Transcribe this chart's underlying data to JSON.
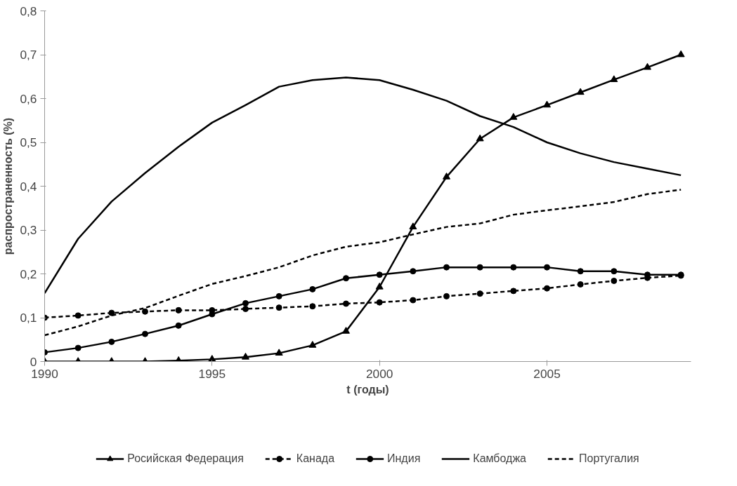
{
  "chart_data": {
    "type": "line",
    "xlabel": "t (годы)",
    "ylabel": "распространенность (%)",
    "x": [
      1990,
      1991,
      1992,
      1993,
      1994,
      1995,
      1996,
      1997,
      1998,
      1999,
      2000,
      2001,
      2002,
      2003,
      2004,
      2005,
      2006,
      2007,
      2008,
      2009
    ],
    "xlim": [
      1990,
      2009.3
    ],
    "xticks": [
      1990,
      1995,
      2000,
      2005
    ],
    "ylim": [
      0,
      0.8
    ],
    "yticks": [
      {
        "value": 0,
        "label": "0"
      },
      {
        "value": 0.1,
        "label": "0,1"
      },
      {
        "value": 0.2,
        "label": "0,2"
      },
      {
        "value": 0.3,
        "label": "0,3"
      },
      {
        "value": 0.4,
        "label": "0,4"
      },
      {
        "value": 0.5,
        "label": "0,5"
      },
      {
        "value": 0.6,
        "label": "0,6"
      },
      {
        "value": 0.7,
        "label": "0,7"
      },
      {
        "value": 0.8,
        "label": "0,8"
      }
    ],
    "grid": false,
    "legend": "bottom",
    "series": [
      {
        "name": "Росийская Федерация",
        "color": "#000000",
        "marker": "triangle",
        "line_style": "solid",
        "values": [
          0,
          0,
          0,
          0,
          0.002,
          0.005,
          0.01,
          0.019,
          0.037,
          0.069,
          0.17,
          0.307,
          0.421,
          0.508,
          0.557,
          0.585,
          0.614,
          0.643,
          0.671,
          0.7
        ]
      },
      {
        "name": "Канада",
        "color": "#000000",
        "marker": "circle",
        "line_style": "dashed",
        "values": [
          0.1,
          0.105,
          0.111,
          0.114,
          0.117,
          0.117,
          0.12,
          0.123,
          0.126,
          0.132,
          0.135,
          0.14,
          0.149,
          0.155,
          0.161,
          0.167,
          0.176,
          0.184,
          0.191,
          0.196
        ]
      },
      {
        "name": "Индия",
        "color": "#000000",
        "marker": "circle",
        "line_style": "solid",
        "values": [
          0.021,
          0.031,
          0.045,
          0.063,
          0.082,
          0.108,
          0.133,
          0.149,
          0.165,
          0.19,
          0.198,
          0.206,
          0.215,
          0.215,
          0.215,
          0.215,
          0.206,
          0.206,
          0.198,
          0.198
        ]
      },
      {
        "name": "Камбоджа",
        "color": "#000000",
        "marker": "none",
        "line_style": "solid",
        "values": [
          0.156,
          0.28,
          0.365,
          0.43,
          0.49,
          0.545,
          0.585,
          0.627,
          0.642,
          0.648,
          0.642,
          0.62,
          0.595,
          0.56,
          0.535,
          0.5,
          0.475,
          0.455,
          0.44,
          0.425
        ]
      },
      {
        "name": "Португалия",
        "color": "#000000",
        "marker": "none",
        "line_style": "dashed",
        "values": [
          0.06,
          0.08,
          0.105,
          0.122,
          0.15,
          0.177,
          0.195,
          0.215,
          0.242,
          0.262,
          0.272,
          0.29,
          0.307,
          0.315,
          0.335,
          0.345,
          0.354,
          0.364,
          0.382,
          0.392
        ]
      }
    ]
  }
}
